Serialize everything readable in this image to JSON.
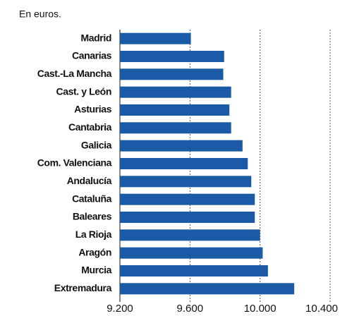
{
  "chart_data": {
    "type": "bar",
    "orientation": "horizontal",
    "subtitle": "En euros.",
    "categories": [
      "Madrid",
      "Canarias",
      "Cast.-La Mancha",
      "Cast. y León",
      "Asturias",
      "Cantabria",
      "Galicia",
      "Com. Valenciana",
      "Andalucía",
      "Cataluña",
      "Baleares",
      "La Rioja",
      "Aragón",
      "Murcia",
      "Extremadura"
    ],
    "values": [
      9605,
      9795,
      9790,
      9835,
      9825,
      9835,
      9900,
      9930,
      9950,
      9970,
      9970,
      10000,
      10015,
      10045,
      10195
    ],
    "color": "#1a5aa6",
    "xlim": [
      9200,
      10400
    ],
    "xticks": [
      {
        "value": 9200,
        "label": "9.200"
      },
      {
        "value": 9600,
        "label": "9.600"
      },
      {
        "value": 10000,
        "label": "10.000"
      },
      {
        "value": 10400,
        "label": "10.400"
      }
    ],
    "grid": true
  }
}
